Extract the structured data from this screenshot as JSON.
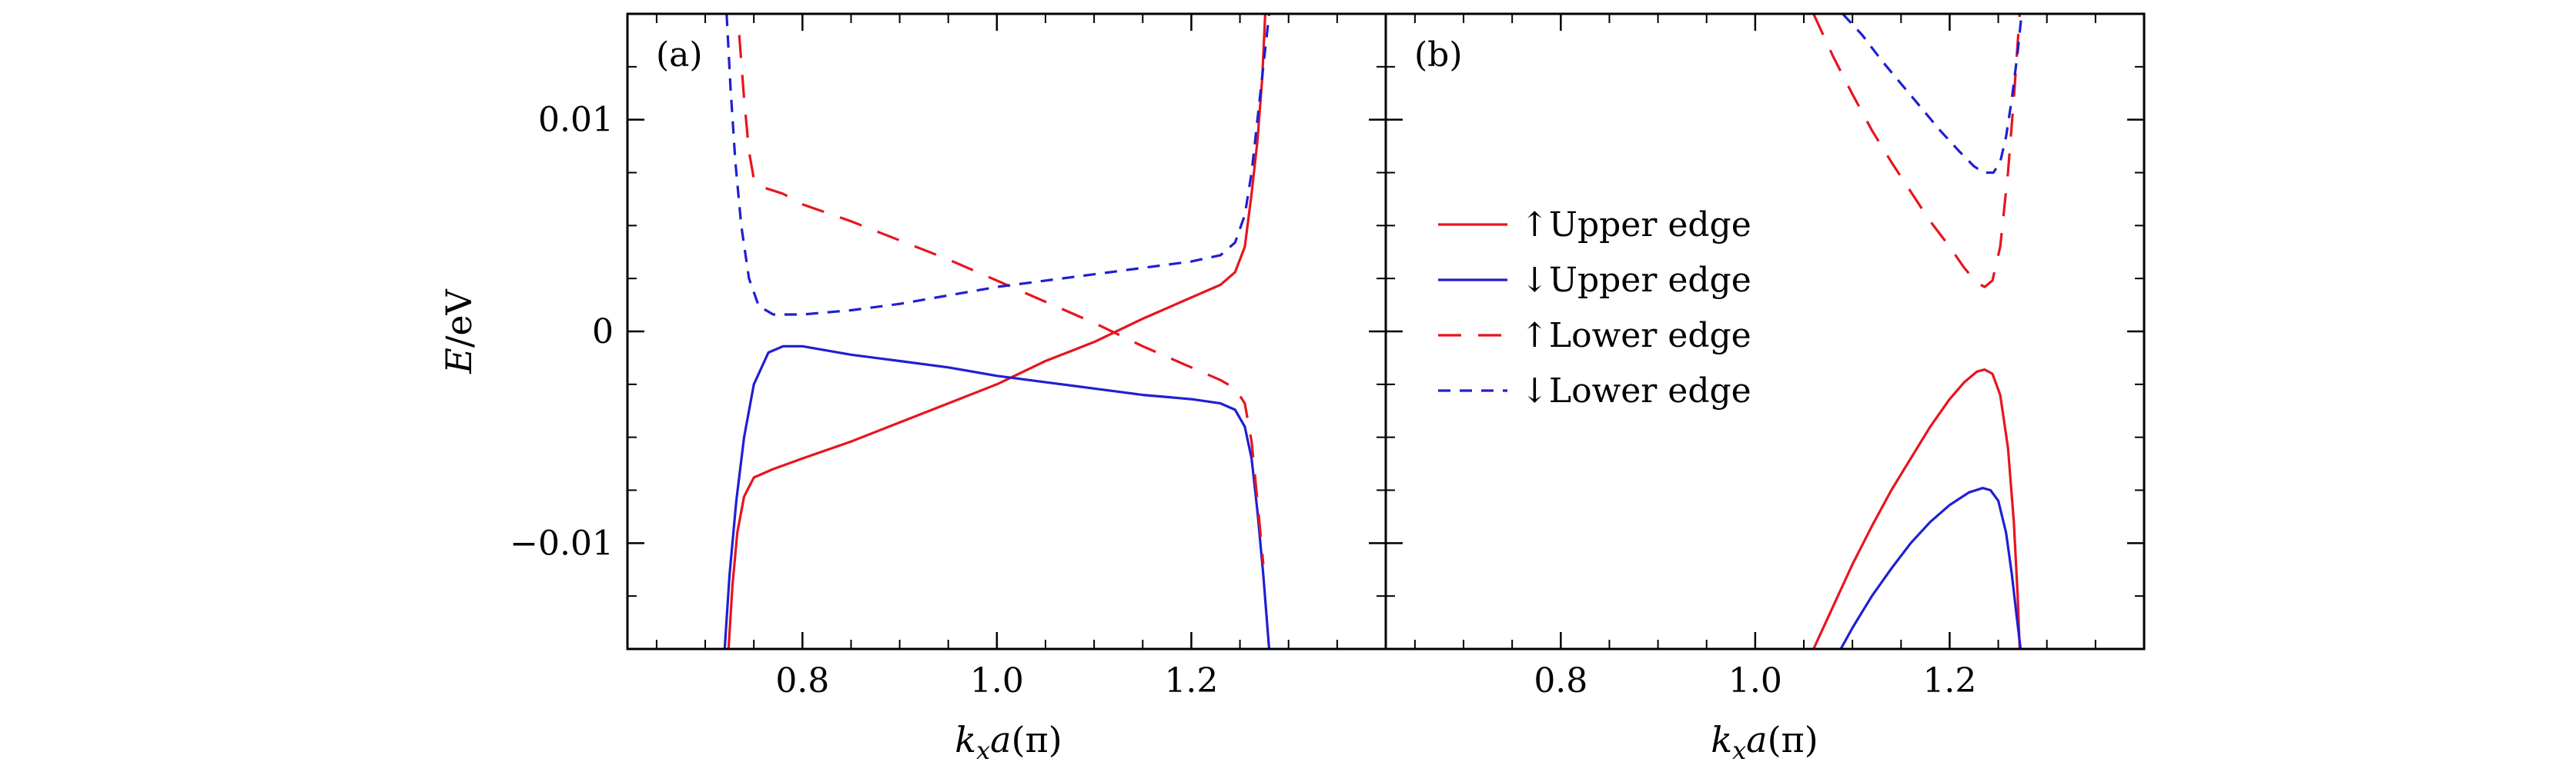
{
  "chart_data": [
    {
      "type": "line",
      "panel_label": "(a)",
      "xlabel": "k_x a(π)",
      "xlabel_parts": {
        "k": "k",
        "sub": "x",
        "a": "a",
        "unit": "(π)"
      },
      "ylabel": "E/eV",
      "ylabel_parts": {
        "E": "E",
        "unit": "/eV"
      },
      "xlim": [
        0.62,
        1.4
      ],
      "ylim": [
        -0.015,
        0.015
      ],
      "xticks": [
        0.8,
        1.0,
        1.2
      ],
      "xtick_labels": [
        "0.8",
        "1.0",
        "1.2"
      ],
      "yticks": [
        -0.01,
        0.0,
        0.01
      ],
      "ytick_labels": [
        "−0.01",
        "0",
        "0.01"
      ],
      "series": [
        {
          "name": "↑Upper edge",
          "color": "#e8141e",
          "style": "solid",
          "x": [
            0.724,
            0.728,
            0.733,
            0.74,
            0.75,
            0.77,
            0.8,
            0.85,
            0.9,
            0.95,
            1.0,
            1.05,
            1.1,
            1.15,
            1.2,
            1.23,
            1.245,
            1.255,
            1.262,
            1.268,
            1.273,
            1.276
          ],
          "y": [
            -0.015,
            -0.012,
            -0.0095,
            -0.0078,
            -0.0069,
            -0.0065,
            -0.006,
            -0.0052,
            -0.0043,
            -0.0034,
            -0.0025,
            -0.0014,
            -0.0005,
            0.0006,
            0.0016,
            0.0022,
            0.0028,
            0.004,
            0.0065,
            0.009,
            0.012,
            0.015
          ]
        },
        {
          "name": "↓Upper edge",
          "color": "#1f1fd2",
          "style": "solid",
          "x": [
            0.72,
            0.725,
            0.732,
            0.74,
            0.75,
            0.765,
            0.78,
            0.8,
            0.85,
            0.9,
            0.95,
            1.0,
            1.05,
            1.1,
            1.15,
            1.2,
            1.23,
            1.245,
            1.255,
            1.262,
            1.268,
            1.274,
            1.28
          ],
          "y": [
            -0.015,
            -0.0115,
            -0.008,
            -0.005,
            -0.0025,
            -0.001,
            -0.0007,
            -0.0007,
            -0.0011,
            -0.0014,
            -0.0017,
            -0.0021,
            -0.0024,
            -0.0027,
            -0.003,
            -0.0032,
            -0.0034,
            -0.0037,
            -0.0045,
            -0.006,
            -0.0085,
            -0.0115,
            -0.015
          ]
        },
        {
          "name": "↑Lower edge",
          "color": "#e8141e",
          "style": "long-dash",
          "x": [
            0.735,
            0.74,
            0.745,
            0.75,
            0.76,
            0.78,
            0.8,
            0.85,
            0.9,
            0.95,
            1.0,
            1.05,
            1.1,
            1.15,
            1.2,
            1.23,
            1.245,
            1.255,
            1.262,
            1.268,
            1.274
          ],
          "y": [
            0.014,
            0.011,
            0.0085,
            0.0072,
            0.0068,
            0.0065,
            0.006,
            0.0052,
            0.0043,
            0.0034,
            0.0024,
            0.0014,
            0.0004,
            -0.0007,
            -0.0017,
            -0.0023,
            -0.0027,
            -0.0034,
            -0.0052,
            -0.008,
            -0.011
          ]
        },
        {
          "name": "↓Lower edge",
          "color": "#1f1fd2",
          "style": "short-dash",
          "x": [
            0.722,
            0.726,
            0.731,
            0.737,
            0.745,
            0.755,
            0.77,
            0.8,
            0.85,
            0.9,
            0.95,
            1.0,
            1.05,
            1.1,
            1.15,
            1.2,
            1.23,
            1.245,
            1.255,
            1.262,
            1.268,
            1.274,
            1.28
          ],
          "y": [
            0.015,
            0.0115,
            0.008,
            0.005,
            0.0025,
            0.0012,
            0.0008,
            0.0008,
            0.001,
            0.0013,
            0.0017,
            0.0021,
            0.0024,
            0.0027,
            0.003,
            0.0033,
            0.0036,
            0.0042,
            0.0055,
            0.0075,
            0.01,
            0.0125,
            0.015
          ]
        }
      ]
    },
    {
      "type": "line",
      "panel_label": "(b)",
      "xlabel": "k_x a(π)",
      "xlabel_parts": {
        "k": "k",
        "sub": "x",
        "a": "a",
        "unit": "(π)"
      },
      "xlim": [
        0.62,
        1.4
      ],
      "ylim": [
        -0.015,
        0.015
      ],
      "xticks": [
        0.8,
        1.0,
        1.2
      ],
      "xtick_labels": [
        "0.8",
        "1.0",
        "1.2"
      ],
      "yticks": [
        -0.01,
        0.0,
        0.01
      ],
      "legend_position": "upper-left",
      "series": [
        {
          "name": "↑Upper edge",
          "color": "#e8141e",
          "style": "solid",
          "x": [
            1.06,
            1.08,
            1.1,
            1.12,
            1.14,
            1.16,
            1.18,
            1.2,
            1.215,
            1.228,
            1.236,
            1.244,
            1.252,
            1.26,
            1.266,
            1.27,
            1.272
          ],
          "y": [
            -0.015,
            -0.013,
            -0.011,
            -0.0092,
            -0.0075,
            -0.006,
            -0.0045,
            -0.0032,
            -0.0024,
            -0.0019,
            -0.0018,
            -0.002,
            -0.003,
            -0.0055,
            -0.009,
            -0.0125,
            -0.015
          ]
        },
        {
          "name": "↓Upper edge",
          "color": "#1f1fd2",
          "style": "solid",
          "x": [
            1.088,
            1.1,
            1.12,
            1.14,
            1.16,
            1.18,
            1.2,
            1.22,
            1.234,
            1.242,
            1.25,
            1.258,
            1.264,
            1.269,
            1.273
          ],
          "y": [
            -0.015,
            -0.014,
            -0.0125,
            -0.0112,
            -0.01,
            -0.009,
            -0.0082,
            -0.0076,
            -0.0074,
            -0.0075,
            -0.008,
            -0.0095,
            -0.0115,
            -0.0135,
            -0.015
          ]
        },
        {
          "name": "↑Lower edge",
          "color": "#e8141e",
          "style": "long-dash",
          "x": [
            1.06,
            1.08,
            1.1,
            1.12,
            1.14,
            1.16,
            1.18,
            1.2,
            1.215,
            1.228,
            1.236,
            1.244,
            1.252,
            1.26,
            1.266,
            1.272
          ],
          "y": [
            0.015,
            0.013,
            0.0112,
            0.0095,
            0.008,
            0.0066,
            0.0052,
            0.004,
            0.003,
            0.0023,
            0.0021,
            0.0024,
            0.004,
            0.0075,
            0.011,
            0.015
          ]
        },
        {
          "name": "↓Lower edge",
          "color": "#1f1fd2",
          "style": "short-dash",
          "x": [
            1.09,
            1.11,
            1.13,
            1.15,
            1.17,
            1.19,
            1.21,
            1.225,
            1.235,
            1.245,
            1.252,
            1.258,
            1.264,
            1.27,
            1.274
          ],
          "y": [
            0.015,
            0.014,
            0.0128,
            0.0117,
            0.0106,
            0.0095,
            0.0085,
            0.0078,
            0.0075,
            0.0075,
            0.008,
            0.0092,
            0.011,
            0.0132,
            0.015
          ]
        }
      ]
    }
  ]
}
